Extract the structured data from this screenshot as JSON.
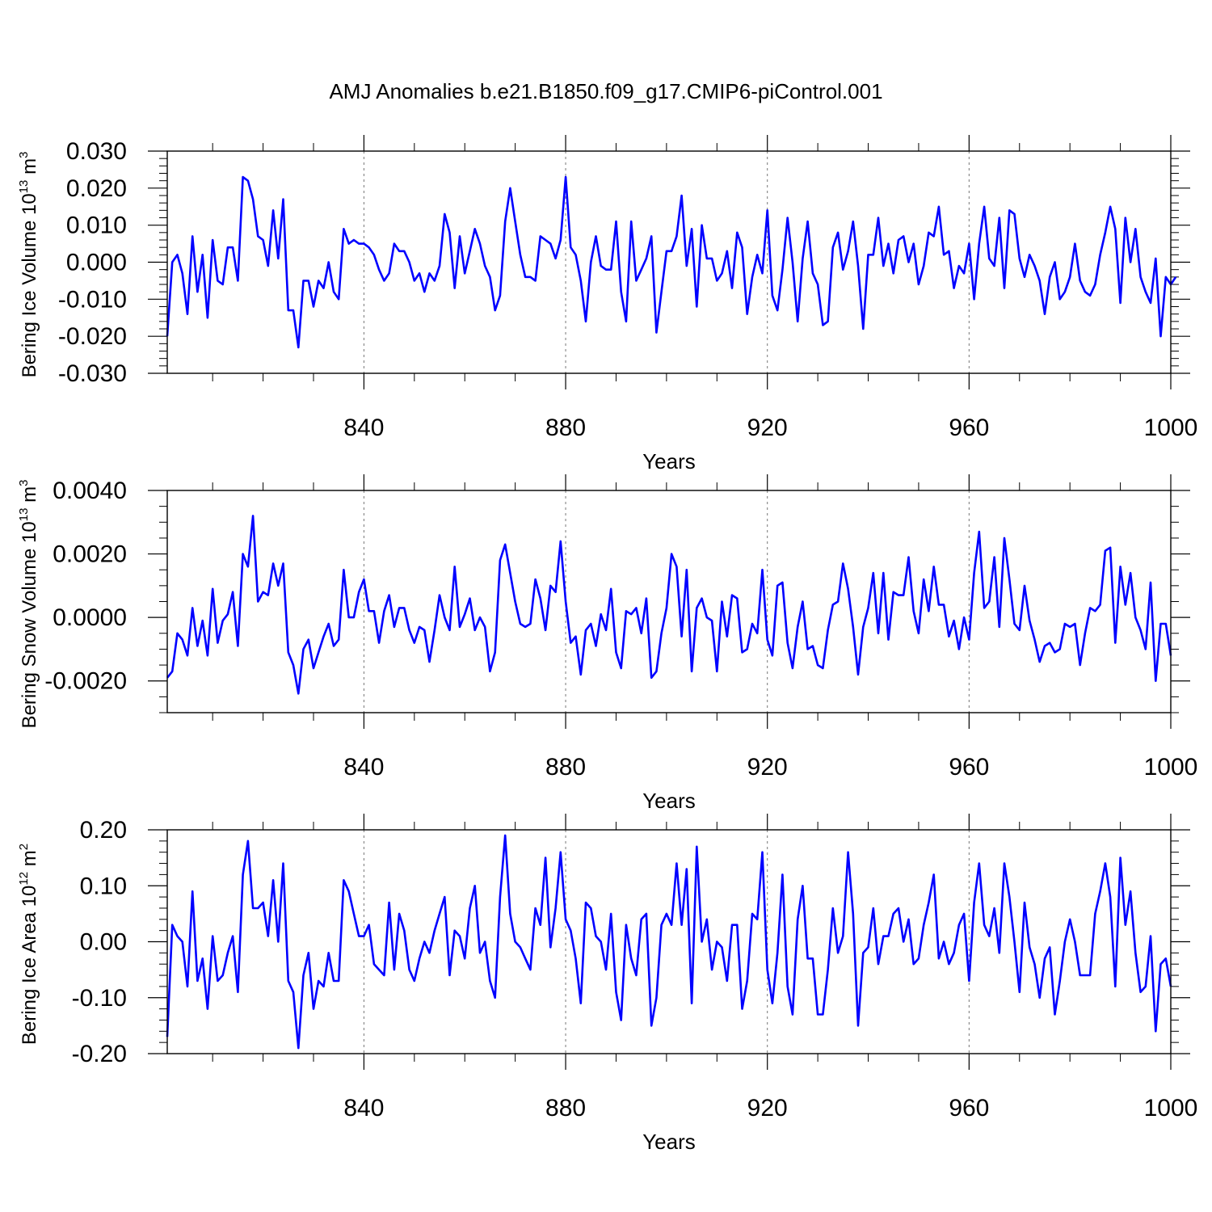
{
  "title": "AMJ Anomalies b.e21.B1850.f09_g17.CMIP6-piControl.001",
  "colors": {
    "line": "#0000ff",
    "axis": "#000000",
    "grid": "#777777"
  },
  "chart_data": [
    {
      "type": "line",
      "ylabel": {
        "main": "Bering Ice Volume 10",
        "sup": "13",
        "post": " m",
        "sup2": "3"
      },
      "xlabel": "Years",
      "xlim": [
        801,
        1000
      ],
      "ylim": [
        -0.03,
        0.03
      ],
      "yticks": [
        -0.03,
        -0.02,
        -0.01,
        0.0,
        0.01,
        0.02,
        0.03
      ],
      "ytick_labels": [
        "-0.030",
        "-0.020",
        "-0.010",
        "0.000",
        "0.010",
        "0.020",
        "0.030"
      ],
      "xticks": [
        840,
        880,
        920,
        960,
        1000
      ],
      "xtick_labels": [
        "840",
        "880",
        "920",
        "960",
        "1000"
      ],
      "grid_x": [
        840,
        880,
        920,
        960
      ],
      "x_start": 801,
      "values": [
        -0.02,
        0.0,
        0.002,
        -0.003,
        -0.014,
        0.007,
        -0.008,
        0.002,
        -0.015,
        0.006,
        -0.005,
        -0.006,
        0.004,
        0.004,
        -0.005,
        0.023,
        0.022,
        0.017,
        0.007,
        0.006,
        -0.001,
        0.014,
        0.001,
        0.017,
        -0.013,
        -0.013,
        -0.023,
        -0.005,
        -0.005,
        -0.012,
        -0.005,
        -0.007,
        0.0,
        -0.008,
        -0.01,
        0.009,
        0.005,
        0.006,
        0.005,
        0.005,
        0.004,
        0.002,
        -0.002,
        -0.005,
        -0.003,
        0.005,
        0.003,
        0.003,
        0.0,
        -0.005,
        -0.003,
        -0.008,
        -0.003,
        -0.005,
        -0.001,
        0.013,
        0.008,
        -0.007,
        0.007,
        -0.003,
        0.003,
        0.009,
        0.005,
        -0.001,
        -0.004,
        -0.013,
        -0.009,
        0.011,
        0.02,
        0.011,
        0.002,
        -0.004,
        -0.004,
        -0.005,
        0.007,
        0.006,
        0.005,
        0.001,
        0.006,
        0.023,
        0.004,
        0.002,
        -0.005,
        -0.016,
        0.0,
        0.007,
        -0.001,
        -0.002,
        -0.002,
        0.011,
        -0.008,
        -0.016,
        0.011,
        -0.005,
        -0.002,
        0.001,
        0.007,
        -0.019,
        -0.008,
        0.003,
        0.003,
        0.007,
        0.018,
        -0.001,
        0.009,
        -0.012,
        0.01,
        0.001,
        0.001,
        -0.005,
        -0.003,
        0.003,
        -0.007,
        0.008,
        0.004,
        -0.014,
        -0.004,
        0.002,
        -0.003,
        0.014,
        -0.009,
        -0.013,
        -0.002,
        0.012,
        0.0,
        -0.016,
        0.001,
        0.011,
        -0.003,
        -0.006,
        -0.017,
        -0.016,
        0.004,
        0.008,
        -0.002,
        0.003,
        0.011,
        -0.001,
        -0.018,
        0.002,
        0.002,
        0.012,
        -0.001,
        0.005,
        -0.003,
        0.006,
        0.007,
        0.0,
        0.005,
        -0.006,
        -0.001,
        0.008,
        0.007,
        0.015,
        0.002,
        0.003,
        -0.007,
        -0.001,
        -0.003,
        0.005,
        -0.01,
        0.005,
        0.015,
        0.001,
        -0.001,
        0.012,
        -0.007,
        0.014,
        0.013,
        0.001,
        -0.004,
        0.002,
        -0.001,
        -0.005,
        -0.014,
        -0.004,
        0.0,
        -0.01,
        -0.008,
        -0.004,
        0.005,
        -0.005,
        -0.008,
        -0.009,
        -0.006,
        0.002,
        0.008,
        0.015,
        0.009,
        -0.011,
        0.012,
        0.0,
        0.009,
        -0.004,
        -0.008,
        -0.011,
        0.001,
        -0.02,
        -0.004,
        -0.006,
        -0.004
      ]
    },
    {
      "type": "line",
      "ylabel": {
        "main": "Bering Snow Volume 10",
        "sup": "13",
        "post": " m",
        "sup2": "3"
      },
      "xlabel": "Years",
      "xlim": [
        801,
        1000
      ],
      "ylim": [
        -0.003,
        0.004
      ],
      "yticks": [
        -0.002,
        0.0,
        0.002,
        0.004
      ],
      "ytick_labels": [
        "-0.0020",
        "0.0000",
        "0.0020",
        "0.0040"
      ],
      "minor_step": 0.0005,
      "xticks": [
        840,
        880,
        920,
        960,
        1000
      ],
      "xtick_labels": [
        "840",
        "880",
        "920",
        "960",
        "1000"
      ],
      "grid_x": [
        840,
        880,
        920,
        960
      ],
      "x_start": 801,
      "values": [
        -0.0019,
        -0.0017,
        -0.0005,
        -0.0007,
        -0.0012,
        0.0003,
        -0.0009,
        -0.0001,
        -0.0012,
        0.0009,
        -0.0008,
        -0.0001,
        0.0001,
        0.0008,
        -0.0009,
        0.002,
        0.0016,
        0.0032,
        0.0005,
        0.0008,
        0.0007,
        0.0017,
        0.001,
        0.0017,
        -0.0011,
        -0.0015,
        -0.0024,
        -0.001,
        -0.0007,
        -0.0016,
        -0.0011,
        -0.0006,
        -0.0002,
        -0.0009,
        -0.0007,
        0.0015,
        0.0,
        0.0,
        0.0008,
        0.0012,
        0.0002,
        0.0002,
        -0.0008,
        0.0002,
        0.0007,
        -0.0003,
        0.0003,
        0.0003,
        -0.0004,
        -0.0008,
        -0.0003,
        -0.0004,
        -0.0014,
        -0.0004,
        0.0007,
        0.0,
        -0.0004,
        0.0016,
        -0.0003,
        0.0001,
        0.0006,
        -0.0004,
        0.0,
        -0.0003,
        -0.0017,
        -0.0011,
        0.0018,
        0.0023,
        0.0014,
        0.0005,
        -0.0002,
        -0.0003,
        -0.0002,
        0.0012,
        0.0006,
        -0.0004,
        0.001,
        0.0008,
        0.0024,
        0.0005,
        -0.0008,
        -0.0006,
        -0.0018,
        -0.0004,
        -0.0002,
        -0.0009,
        0.0001,
        -0.0004,
        0.0009,
        -0.0011,
        -0.0016,
        0.0002,
        0.0001,
        0.0003,
        -0.0005,
        0.0006,
        -0.0019,
        -0.0017,
        -0.0005,
        0.0003,
        0.002,
        0.0016,
        -0.0006,
        0.0015,
        -0.0017,
        0.0003,
        0.0006,
        0.0,
        -0.0001,
        -0.0017,
        0.0005,
        -0.0006,
        0.0007,
        0.0006,
        -0.0011,
        -0.001,
        -0.0002,
        -0.0005,
        0.0015,
        -0.0007,
        -0.0012,
        0.001,
        0.0011,
        -0.0008,
        -0.0016,
        -0.0003,
        0.0005,
        -0.001,
        -0.0009,
        -0.0015,
        -0.0016,
        -0.0004,
        0.0004,
        0.0005,
        0.0017,
        0.0009,
        -0.0003,
        -0.0018,
        -0.0003,
        0.0003,
        0.0014,
        -0.0005,
        0.0014,
        -0.0007,
        0.0008,
        0.0007,
        0.0007,
        0.0019,
        0.0002,
        -0.0005,
        0.0012,
        0.0002,
        0.0016,
        0.0004,
        0.0004,
        -0.0006,
        -0.0001,
        -0.001,
        0.0,
        -0.0007,
        0.0014,
        0.0027,
        0.0003,
        0.0005,
        0.0019,
        -0.0003,
        0.0025,
        0.0012,
        -0.0002,
        -0.0004,
        0.001,
        -0.0001,
        -0.0007,
        -0.0014,
        -0.0009,
        -0.0008,
        -0.0011,
        -0.001,
        -0.0002,
        -0.0003,
        -0.0002,
        -0.0015,
        -0.0005,
        0.0003,
        0.0002,
        0.0004,
        0.0021,
        0.0022,
        -0.0008,
        0.0016,
        0.0004,
        0.0014,
        0.0,
        -0.0004,
        -0.001,
        0.0011,
        -0.002,
        -0.0002,
        -0.0002,
        -0.0012
      ]
    },
    {
      "type": "line",
      "ylabel": {
        "main": "Bering Ice Area 10",
        "sup": "12",
        "post": " m",
        "sup2": "2"
      },
      "xlabel": "Years",
      "xlim": [
        801,
        1000
      ],
      "ylim": [
        -0.2,
        0.2
      ],
      "yticks": [
        -0.2,
        -0.1,
        0.0,
        0.1,
        0.2
      ],
      "ytick_labels": [
        "-0.20",
        "-0.10",
        "0.00",
        "0.10",
        "0.20"
      ],
      "minor_step": 0.02,
      "xticks": [
        840,
        880,
        920,
        960,
        1000
      ],
      "xtick_labels": [
        "840",
        "880",
        "920",
        "960",
        "1000"
      ],
      "grid_x": [
        840,
        880,
        920,
        960
      ],
      "x_start": 801,
      "values": [
        -0.17,
        0.03,
        0.01,
        0.0,
        -0.08,
        0.09,
        -0.07,
        -0.03,
        -0.12,
        0.01,
        -0.07,
        -0.06,
        -0.02,
        0.01,
        -0.09,
        0.12,
        0.18,
        0.06,
        0.06,
        0.07,
        0.01,
        0.11,
        0.0,
        0.14,
        -0.07,
        -0.09,
        -0.19,
        -0.06,
        -0.02,
        -0.12,
        -0.07,
        -0.08,
        -0.02,
        -0.07,
        -0.07,
        0.11,
        0.09,
        0.05,
        0.01,
        0.01,
        0.03,
        -0.04,
        -0.05,
        -0.06,
        0.07,
        -0.05,
        0.05,
        0.02,
        -0.05,
        -0.07,
        -0.03,
        0.0,
        -0.02,
        0.02,
        0.05,
        0.08,
        -0.06,
        0.02,
        0.01,
        -0.03,
        0.06,
        0.1,
        -0.02,
        0.0,
        -0.07,
        -0.1,
        0.08,
        0.19,
        0.05,
        0.0,
        -0.01,
        -0.03,
        -0.05,
        0.06,
        0.03,
        0.15,
        -0.01,
        0.06,
        0.16,
        0.04,
        0.02,
        -0.03,
        -0.11,
        0.07,
        0.06,
        0.01,
        0.0,
        -0.05,
        0.05,
        -0.09,
        -0.14,
        0.03,
        -0.03,
        -0.06,
        0.04,
        0.05,
        -0.15,
        -0.1,
        0.03,
        0.05,
        0.03,
        0.14,
        0.03,
        0.13,
        -0.11,
        0.17,
        0.0,
        0.04,
        -0.05,
        0.0,
        -0.01,
        -0.07,
        0.03,
        0.03,
        -0.12,
        -0.07,
        0.05,
        0.04,
        0.16,
        -0.05,
        -0.11,
        -0.02,
        0.12,
        -0.08,
        -0.13,
        0.04,
        0.1,
        -0.03,
        -0.03,
        -0.13,
        -0.13,
        -0.05,
        0.06,
        -0.02,
        0.01,
        0.16,
        0.05,
        -0.15,
        -0.02,
        -0.01,
        0.06,
        -0.04,
        0.01,
        0.01,
        0.05,
        0.06,
        0.0,
        0.04,
        -0.04,
        -0.03,
        0.03,
        0.07,
        0.12,
        -0.03,
        0.0,
        -0.04,
        -0.02,
        0.03,
        0.05,
        -0.07,
        0.07,
        0.14,
        0.03,
        0.01,
        0.06,
        -0.02,
        0.14,
        0.08,
        0.0,
        -0.09,
        0.07,
        -0.01,
        -0.04,
        -0.1,
        -0.03,
        -0.01,
        -0.13,
        -0.07,
        0.0,
        0.04,
        0.0,
        -0.06,
        -0.06,
        -0.06,
        0.05,
        0.09,
        0.14,
        0.08,
        -0.08,
        0.15,
        0.03,
        0.09,
        -0.02,
        -0.09,
        -0.08,
        0.01,
        -0.16,
        -0.04,
        -0.03,
        -0.08
      ]
    }
  ]
}
